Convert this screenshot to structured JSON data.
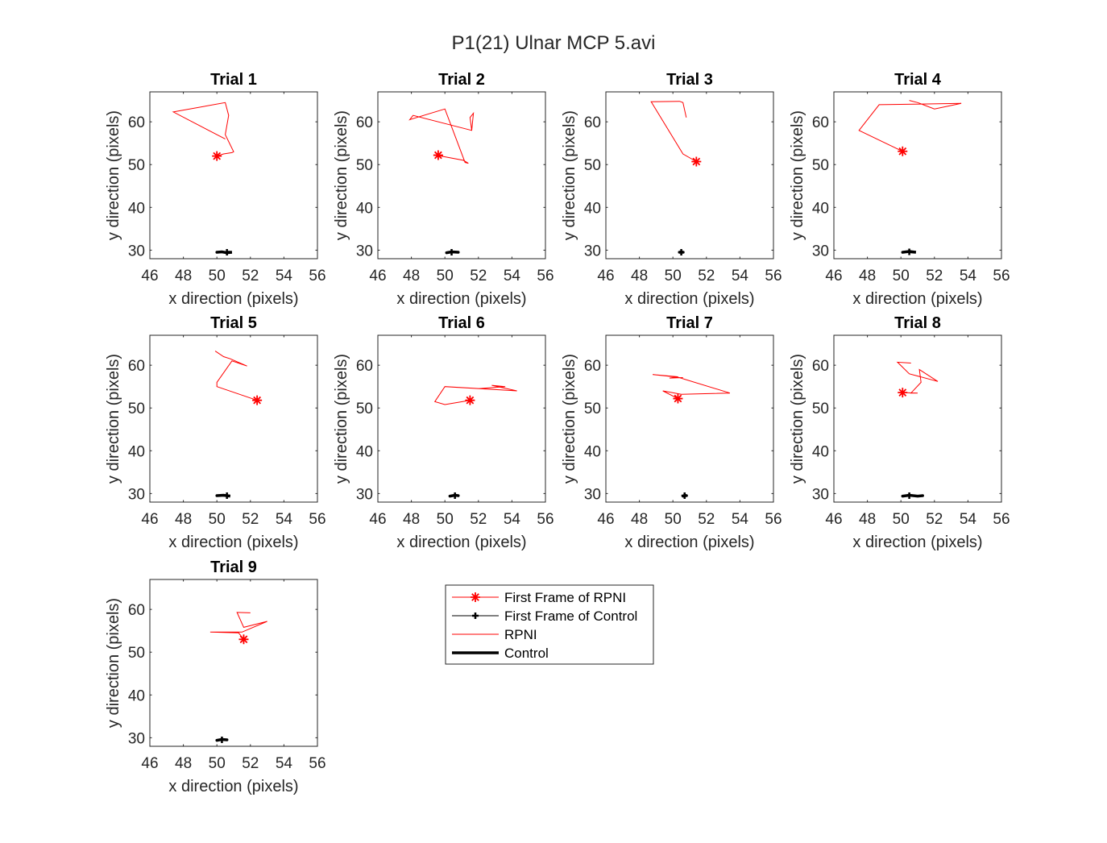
{
  "figure": {
    "title": "P1(21) Ulnar MCP 5.avi"
  },
  "colors": {
    "rpni": "#ff0000",
    "control": "#000000",
    "axis": "#262626"
  },
  "legend": {
    "placement": "center-right below grid",
    "items": [
      {
        "label": "First Frame of RPNI",
        "color": "#ff0000",
        "style": "line-with-star-marker"
      },
      {
        "label": "First Frame of Control",
        "color": "#000000",
        "style": "line-with-plus-marker"
      },
      {
        "label": "RPNI",
        "color": "#ff0000",
        "style": "thin-line"
      },
      {
        "label": "Control",
        "color": "#000000",
        "style": "thick-line"
      }
    ]
  },
  "chart_data": [
    {
      "type": "line",
      "title": "Trial 1",
      "xlabel": "x direction (pixels)",
      "ylabel": "y direction (pixels)",
      "xlim": [
        46,
        56
      ],
      "ylim": [
        28,
        67
      ],
      "xticks": [
        46,
        48,
        50,
        52,
        54,
        56
      ],
      "yticks": [
        30,
        40,
        50,
        60
      ],
      "series": [
        {
          "name": "RPNI",
          "x": [
            50.0,
            50.4,
            50.9,
            51.0,
            50.5,
            50.7,
            50.5,
            47.4,
            50.0,
            50.5
          ],
          "y": [
            52.0,
            52.5,
            52.8,
            53.0,
            57.0,
            61.5,
            64.5,
            62.3,
            57.0,
            56.0
          ]
        },
        {
          "name": "First Frame of RPNI",
          "x": [
            50.0
          ],
          "y": [
            52.0
          ]
        },
        {
          "name": "Control",
          "x": [
            50.0,
            50.3,
            50.6,
            50.9,
            50.6
          ],
          "y": [
            29.5,
            29.6,
            29.4,
            29.5,
            29.5
          ]
        },
        {
          "name": "First Frame of Control",
          "x": [
            50.6
          ],
          "y": [
            29.5
          ]
        }
      ]
    },
    {
      "type": "line",
      "title": "Trial 2",
      "xlabel": "x direction (pixels)",
      "ylabel": "y direction (pixels)",
      "xlim": [
        46,
        56
      ],
      "ylim": [
        28,
        67
      ],
      "xticks": [
        46,
        48,
        50,
        52,
        54,
        56
      ],
      "yticks": [
        30,
        40,
        50,
        60
      ],
      "series": [
        {
          "name": "RPNI",
          "x": [
            49.5,
            51.1,
            51.4,
            51.2,
            50.0,
            47.9,
            48.1,
            51.6,
            51.7,
            51.5,
            51.6
          ],
          "y": [
            52.2,
            51.0,
            50.3,
            50.5,
            63.0,
            60.5,
            61.5,
            58.0,
            62.0,
            61.0,
            58.0
          ]
        },
        {
          "name": "First Frame of RPNI",
          "x": [
            49.6
          ],
          "y": [
            52.2
          ]
        },
        {
          "name": "Control",
          "x": [
            50.1,
            50.4,
            50.8
          ],
          "y": [
            29.4,
            29.6,
            29.5
          ]
        },
        {
          "name": "First Frame of Control",
          "x": [
            50.4
          ],
          "y": [
            29.5
          ]
        }
      ]
    },
    {
      "type": "line",
      "title": "Trial 3",
      "xlabel": "x direction (pixels)",
      "ylabel": "y direction (pixels)",
      "xlim": [
        46,
        56
      ],
      "ylim": [
        28,
        67
      ],
      "xticks": [
        46,
        48,
        50,
        52,
        54,
        56
      ],
      "yticks": [
        30,
        40,
        50,
        60
      ],
      "series": [
        {
          "name": "RPNI",
          "x": [
            51.4,
            50.6,
            48.7,
            50.4,
            50.6,
            50.8
          ],
          "y": [
            50.7,
            52.5,
            64.7,
            64.8,
            64.5,
            61.0
          ]
        },
        {
          "name": "First Frame of RPNI",
          "x": [
            51.4
          ],
          "y": [
            50.7
          ]
        },
        {
          "name": "Control",
          "x": [
            50.4,
            50.5,
            50.6
          ],
          "y": [
            29.5,
            29.6,
            29.5
          ]
        },
        {
          "name": "First Frame of Control",
          "x": [
            50.5
          ],
          "y": [
            29.5
          ]
        }
      ]
    },
    {
      "type": "line",
      "title": "Trial 4",
      "xlabel": "x direction (pixels)",
      "ylabel": "y direction (pixels)",
      "xlim": [
        46,
        56
      ],
      "ylim": [
        28,
        67
      ],
      "xticks": [
        46,
        48,
        50,
        52,
        54,
        56
      ],
      "yticks": [
        30,
        40,
        50,
        60
      ],
      "series": [
        {
          "name": "RPNI",
          "x": [
            50.1,
            47.5,
            48.7,
            53.6,
            52.0,
            51.0,
            50.5
          ],
          "y": [
            53.1,
            58.0,
            64.0,
            64.3,
            63.0,
            64.5,
            65.0
          ]
        },
        {
          "name": "First Frame of RPNI",
          "x": [
            50.1
          ],
          "y": [
            53.1
          ]
        },
        {
          "name": "Control",
          "x": [
            50.1,
            50.5,
            50.9,
            50.6
          ],
          "y": [
            29.5,
            29.7,
            29.5,
            29.6
          ]
        },
        {
          "name": "First Frame of Control",
          "x": [
            50.5
          ],
          "y": [
            29.6
          ]
        }
      ]
    },
    {
      "type": "line",
      "title": "Trial 5",
      "xlabel": "x direction (pixels)",
      "ylabel": "y direction (pixels)",
      "xlim": [
        46,
        56
      ],
      "ylim": [
        28,
        67
      ],
      "xticks": [
        46,
        48,
        50,
        52,
        54,
        56
      ],
      "yticks": [
        30,
        40,
        50,
        60
      ],
      "series": [
        {
          "name": "RPNI",
          "x": [
            52.4,
            50.0,
            50.0,
            50.9,
            51.8,
            50.8,
            50.4,
            49.9
          ],
          "y": [
            51.8,
            55.0,
            56.0,
            61.0,
            59.8,
            61.5,
            62.0,
            63.3
          ]
        },
        {
          "name": "First Frame of RPNI",
          "x": [
            52.4
          ],
          "y": [
            51.8
          ]
        },
        {
          "name": "Control",
          "x": [
            50.0,
            50.4,
            50.8,
            50.6
          ],
          "y": [
            29.5,
            29.6,
            29.4,
            29.5
          ]
        },
        {
          "name": "First Frame of Control",
          "x": [
            50.6
          ],
          "y": [
            29.5
          ]
        }
      ]
    },
    {
      "type": "line",
      "title": "Trial 6",
      "xlabel": "x direction (pixels)",
      "ylabel": "y direction (pixels)",
      "xlim": [
        46,
        56
      ],
      "ylim": [
        28,
        67
      ],
      "xticks": [
        46,
        48,
        50,
        52,
        54,
        56
      ],
      "yticks": [
        30,
        40,
        50,
        60
      ],
      "series": [
        {
          "name": "RPNI",
          "x": [
            51.5,
            50.0,
            49.4,
            50.0,
            54.3,
            52.8,
            53.6,
            52.0
          ],
          "y": [
            51.8,
            50.8,
            51.5,
            55.0,
            54.0,
            55.3,
            55.0,
            54.5
          ]
        },
        {
          "name": "First Frame of RPNI",
          "x": [
            51.5
          ],
          "y": [
            51.8
          ]
        },
        {
          "name": "Control",
          "x": [
            50.3,
            50.6,
            50.8
          ],
          "y": [
            29.4,
            29.6,
            29.5
          ]
        },
        {
          "name": "First Frame of Control",
          "x": [
            50.6
          ],
          "y": [
            29.5
          ]
        }
      ]
    },
    {
      "type": "line",
      "title": "Trial 7",
      "xlabel": "x direction (pixels)",
      "ylabel": "y direction (pixels)",
      "xlim": [
        46,
        56
      ],
      "ylim": [
        28,
        67
      ],
      "xticks": [
        46,
        48,
        50,
        52,
        54,
        56
      ],
      "yticks": [
        30,
        40,
        50,
        60
      ],
      "series": [
        {
          "name": "RPNI",
          "x": [
            50.3,
            49.4,
            50.5,
            53.4,
            50.3,
            48.8,
            50.3,
            49.8,
            50.6
          ],
          "y": [
            52.2,
            54.0,
            53.2,
            53.5,
            57.2,
            57.8,
            57.3,
            57.0,
            57.1
          ]
        },
        {
          "name": "First Frame of RPNI",
          "x": [
            50.3
          ],
          "y": [
            52.2
          ]
        },
        {
          "name": "Control",
          "x": [
            50.6,
            50.7,
            50.8
          ],
          "y": [
            29.4,
            29.6,
            29.5
          ]
        },
        {
          "name": "First Frame of Control",
          "x": [
            50.7
          ],
          "y": [
            29.5
          ]
        }
      ]
    },
    {
      "type": "line",
      "title": "Trial 8",
      "xlabel": "x direction (pixels)",
      "ylabel": "y direction (pixels)",
      "xlim": [
        46,
        56
      ],
      "ylim": [
        28,
        67
      ],
      "xticks": [
        46,
        48,
        50,
        52,
        54,
        56
      ],
      "yticks": [
        30,
        40,
        50,
        60
      ],
      "series": [
        {
          "name": "RPNI",
          "x": [
            50.1,
            51.0,
            50.6,
            51.2,
            51.1,
            52.2,
            50.5,
            49.8,
            50.6
          ],
          "y": [
            53.6,
            53.5,
            53.5,
            56.0,
            59.0,
            56.2,
            58.0,
            60.7,
            60.5
          ]
        },
        {
          "name": "First Frame of RPNI",
          "x": [
            50.1
          ],
          "y": [
            53.6
          ]
        },
        {
          "name": "Control",
          "x": [
            50.1,
            50.5,
            51.0,
            51.3
          ],
          "y": [
            29.4,
            29.6,
            29.4,
            29.5
          ]
        },
        {
          "name": "First Frame of Control",
          "x": [
            50.5
          ],
          "y": [
            29.5
          ]
        }
      ]
    },
    {
      "type": "line",
      "title": "Trial 9",
      "xlabel": "x direction (pixels)",
      "ylabel": "y direction (pixels)",
      "xlim": [
        46,
        56
      ],
      "ylim": [
        28,
        67
      ],
      "xticks": [
        46,
        48,
        50,
        52,
        54,
        56
      ],
      "yticks": [
        30,
        40,
        50,
        60
      ],
      "series": [
        {
          "name": "RPNI",
          "x": [
            51.6,
            51.3,
            49.6,
            51.5,
            53.0,
            51.6,
            51.2,
            52.0
          ],
          "y": [
            53.0,
            54.5,
            54.7,
            54.7,
            57.2,
            55.8,
            59.3,
            59.2
          ]
        },
        {
          "name": "First Frame of RPNI",
          "x": [
            51.6
          ],
          "y": [
            53.0
          ]
        },
        {
          "name": "Control",
          "x": [
            50.0,
            50.3,
            50.6
          ],
          "y": [
            29.4,
            29.6,
            29.5
          ]
        },
        {
          "name": "First Frame of Control",
          "x": [
            50.3
          ],
          "y": [
            29.5
          ]
        }
      ]
    }
  ]
}
